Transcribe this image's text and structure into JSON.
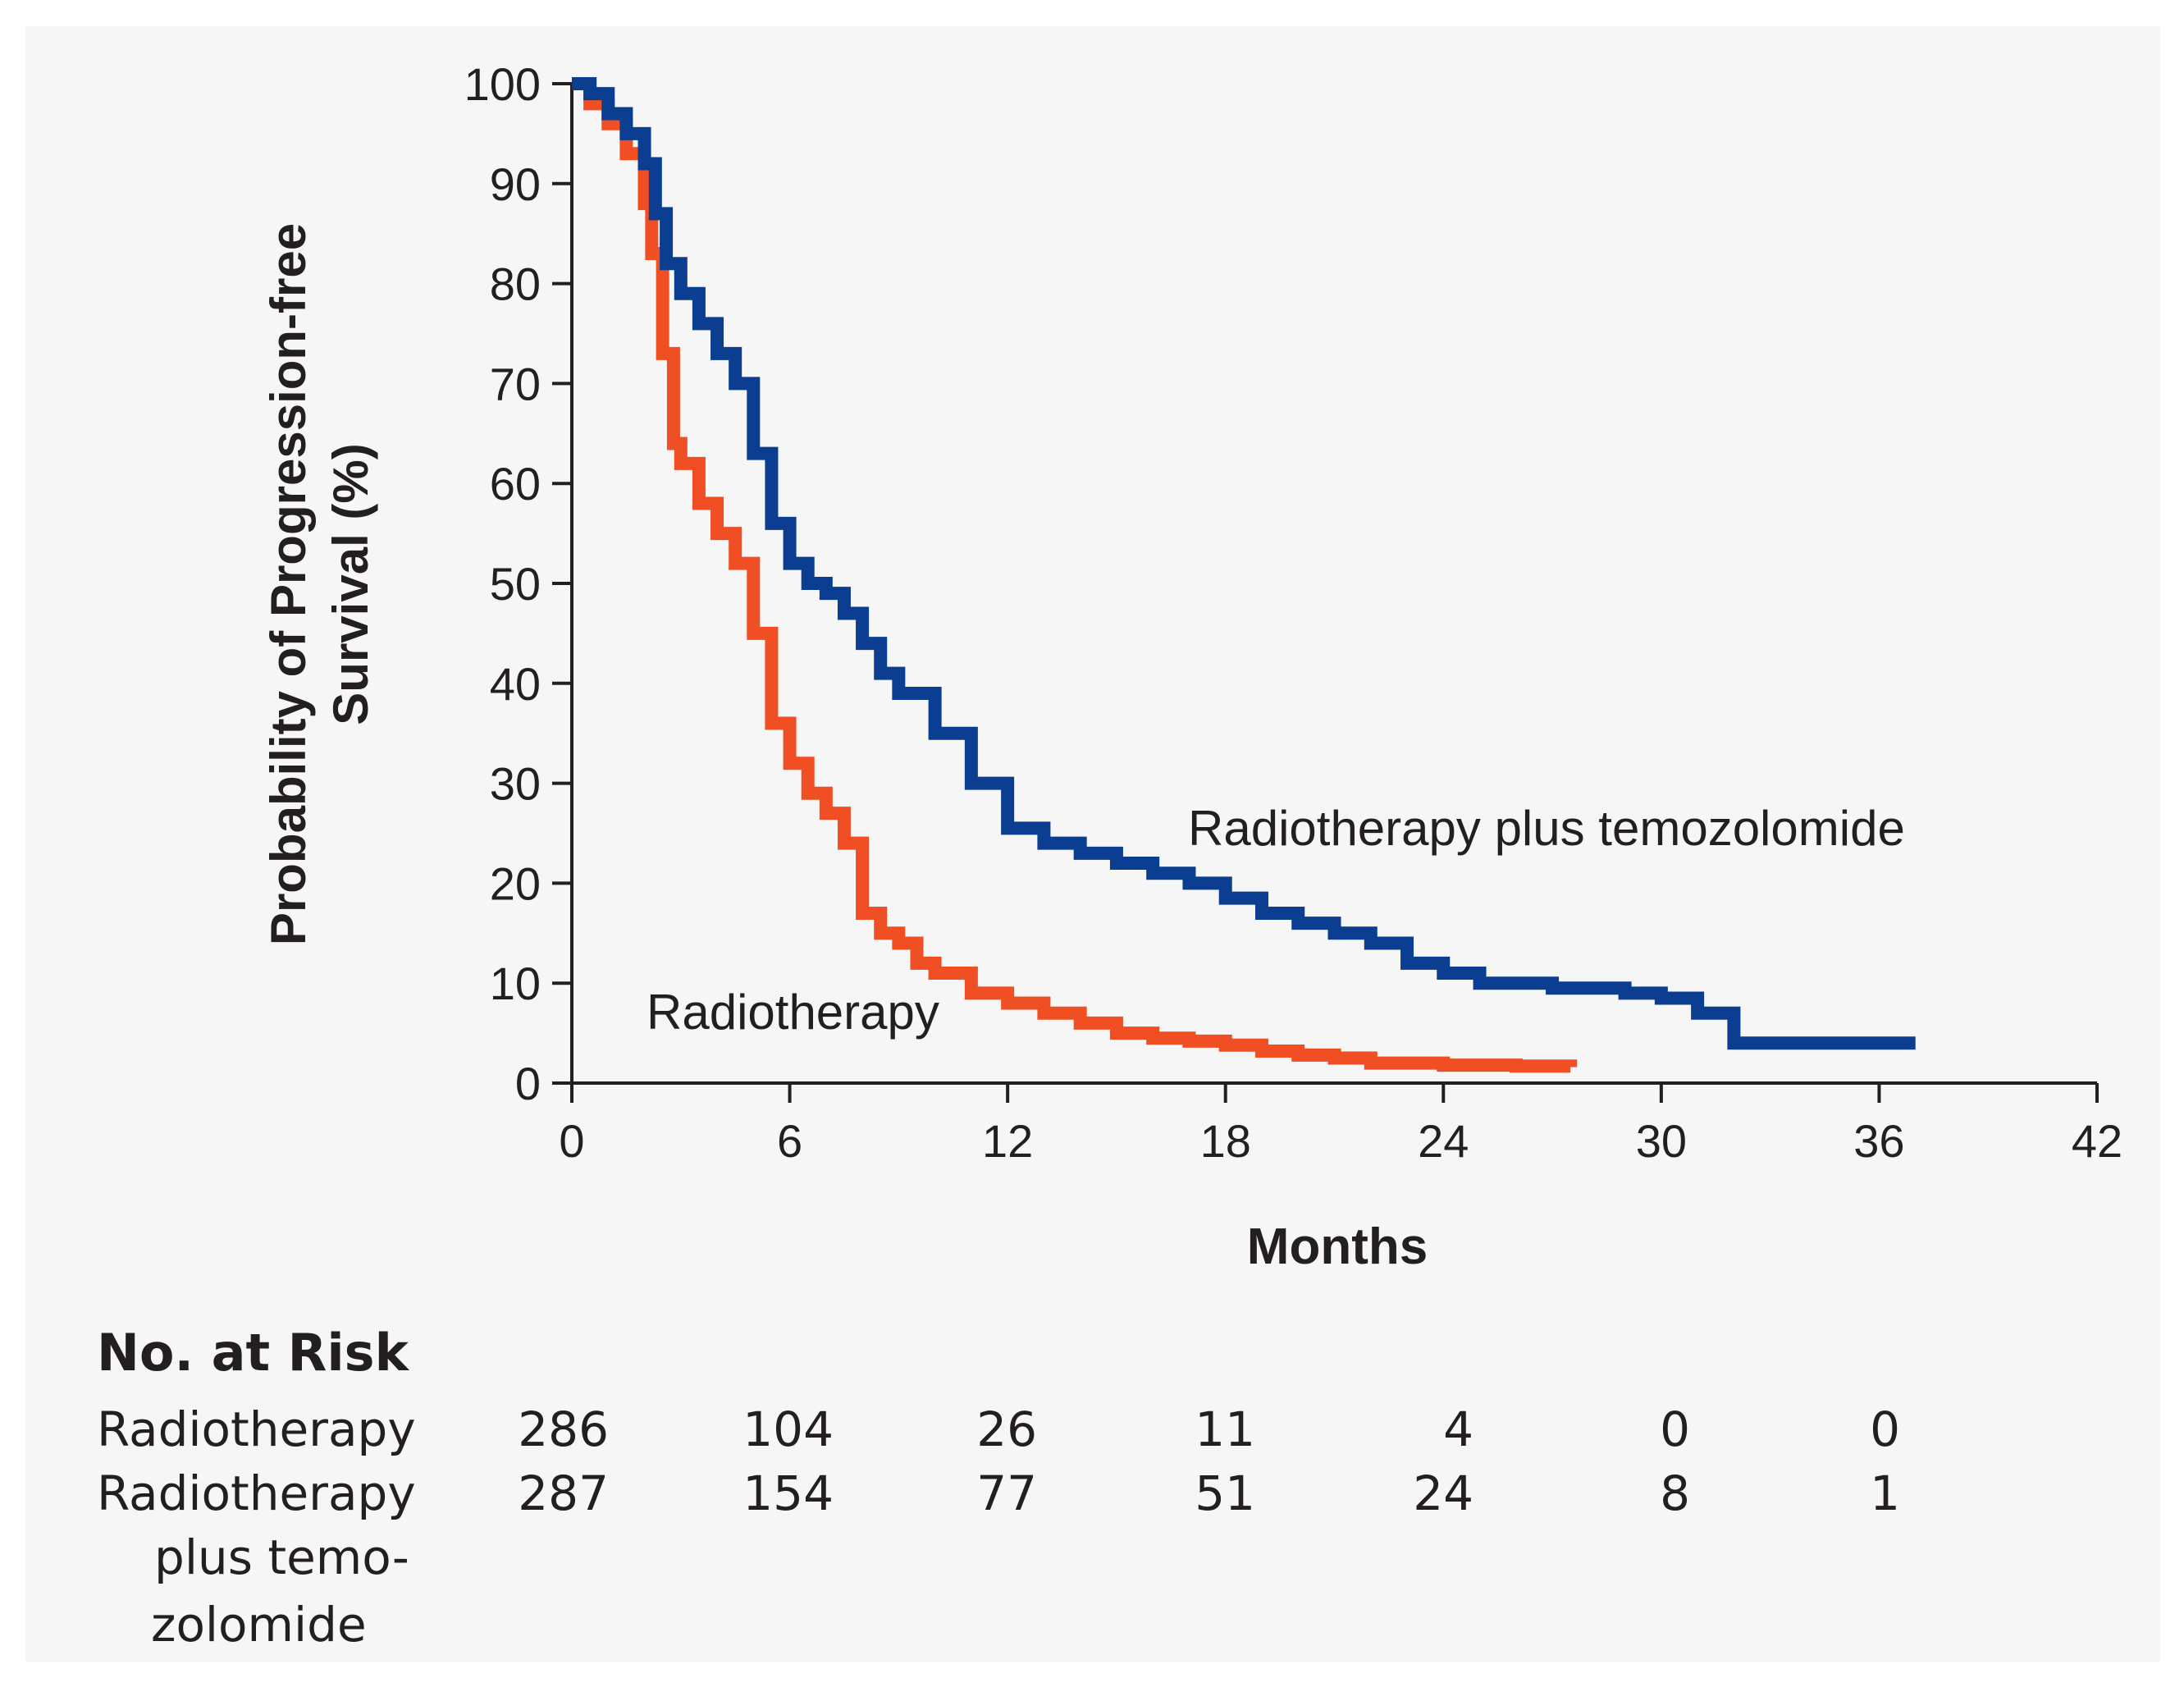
{
  "chart_data": {
    "type": "line",
    "subtype": "kaplan-meier step",
    "ylabel_line1": "Probability of  Progression-free",
    "ylabel_line2": "Survival (%)",
    "xlabel": "Months",
    "xlim": [
      0,
      42
    ],
    "ylim": [
      0,
      100
    ],
    "xticks": [
      0,
      6,
      12,
      18,
      24,
      30,
      36,
      42
    ],
    "yticks": [
      0,
      10,
      20,
      30,
      40,
      50,
      60,
      70,
      80,
      90,
      100
    ],
    "series": [
      {
        "name": "Radiotherapy",
        "color": "#f04e23",
        "label": "Radiotherapy",
        "x": [
          0,
          0.5,
          1.0,
          1.5,
          2.0,
          2.2,
          2.5,
          2.8,
          3.0,
          3.5,
          4.0,
          4.5,
          5.0,
          5.5,
          6.0,
          6.5,
          7.0,
          7.5,
          8.0,
          8.5,
          9.0,
          9.5,
          10.0,
          11.0,
          12.0,
          13.0,
          14.0,
          15.0,
          16.0,
          17.0,
          18.0,
          19.0,
          20.0,
          21.0,
          22.0,
          24.0,
          26.0,
          27.5
        ],
        "y": [
          100,
          98,
          96,
          93,
          88,
          83,
          73,
          64,
          62,
          58,
          55,
          52,
          45,
          36,
          32,
          29,
          27,
          24,
          17,
          15,
          14,
          12,
          11,
          9,
          8,
          7,
          6,
          5,
          4.5,
          4.2,
          3.8,
          3.2,
          2.8,
          2.5,
          2.0,
          1.8,
          1.7,
          1.6
        ]
      },
      {
        "name": "Radiotherapy plus temozolomide",
        "color": "#0b3d91",
        "label": "Radiotherapy plus temozolomide",
        "x": [
          0,
          0.5,
          1.0,
          1.5,
          2.0,
          2.3,
          2.6,
          3.0,
          3.5,
          4.0,
          4.5,
          5.0,
          5.5,
          6.0,
          6.5,
          7.0,
          7.5,
          8.0,
          8.5,
          9.0,
          10.0,
          11.0,
          12.0,
          13.0,
          14.0,
          15.0,
          16.0,
          17.0,
          18.0,
          19.0,
          20.0,
          21.0,
          22.0,
          23.0,
          24.0,
          25.0,
          27.0,
          29.0,
          30.0,
          31.0,
          32.0,
          37.0
        ],
        "y": [
          100,
          99,
          97,
          95,
          92,
          87,
          82,
          79,
          76,
          73,
          70,
          63,
          56,
          52,
          50,
          49,
          47,
          44,
          41,
          39,
          35,
          30,
          25.5,
          24,
          23,
          22,
          21,
          20,
          18.5,
          17,
          16,
          15,
          14,
          12,
          11,
          10,
          9.5,
          9,
          8.5,
          7,
          4,
          4
        ]
      }
    ],
    "at_risk": {
      "title": "No. at Risk",
      "times": [
        0,
        6,
        12,
        18,
        24,
        30,
        36
      ],
      "rows": [
        {
          "label": "Radiotherapy",
          "values": [
            "286",
            "104",
            "26",
            "11",
            "4",
            "0",
            "0"
          ]
        },
        {
          "label_lines": [
            "Radiotherapy",
            "plus temo-",
            "zolomide"
          ],
          "values": [
            "287",
            "154",
            "77",
            "51",
            "24",
            "8",
            "1"
          ]
        }
      ]
    }
  }
}
